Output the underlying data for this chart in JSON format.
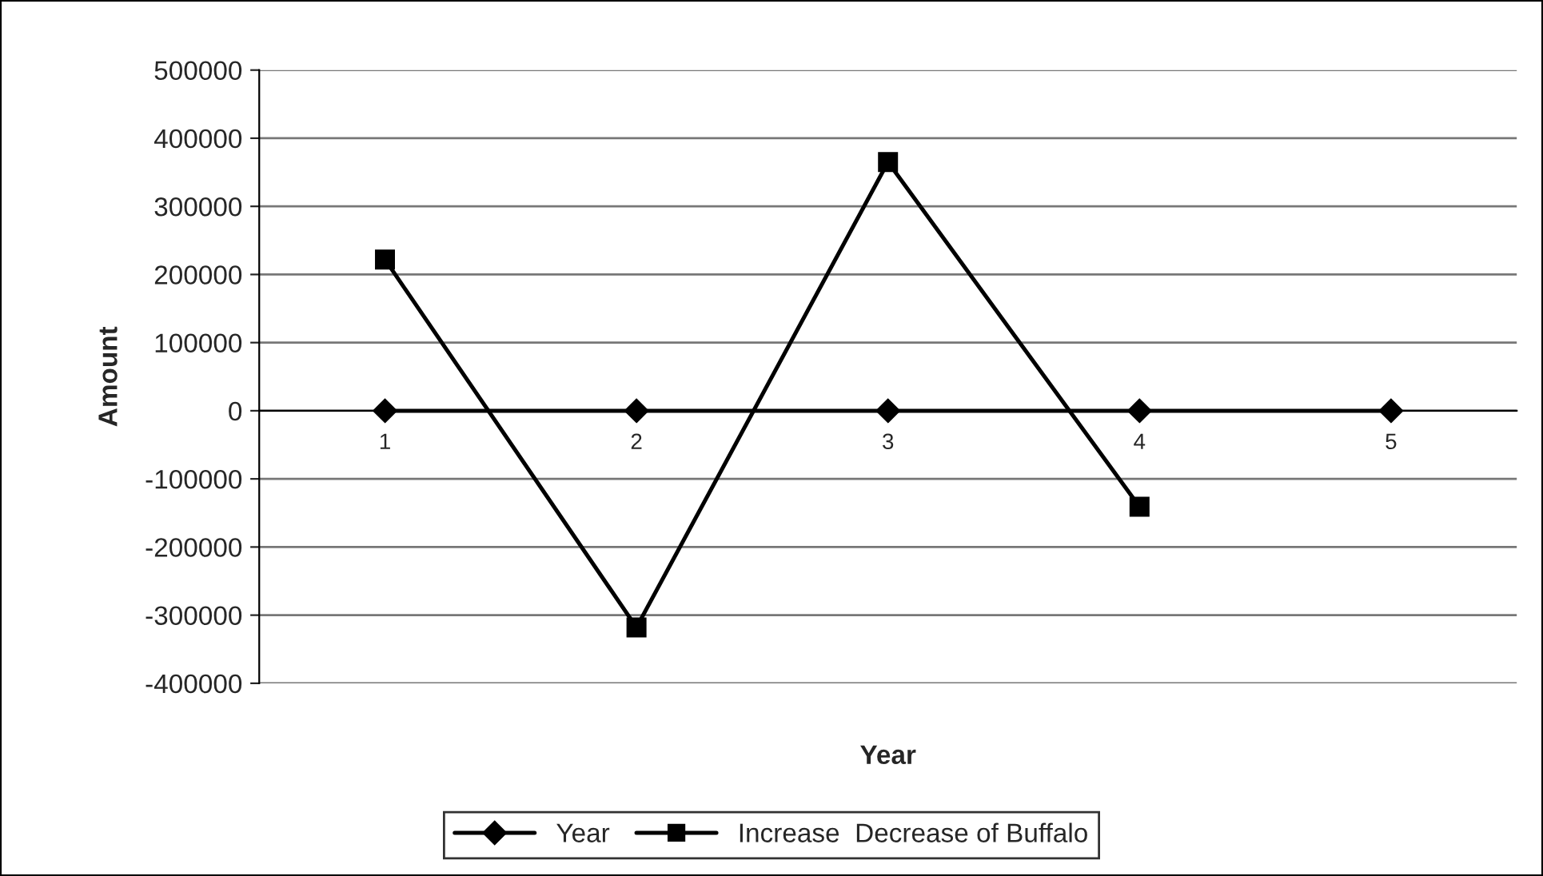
{
  "chart_data": {
    "type": "line",
    "xlabel": "Year",
    "ylabel": "Amount",
    "categories": [
      "1",
      "2",
      "3",
      "4",
      "5"
    ],
    "series": [
      {
        "name": "Year",
        "color": "#000000",
        "marker": "diamond",
        "values": [
          0,
          0,
          0,
          0,
          0
        ]
      },
      {
        "name": "Increase  Decrease of Buffalo",
        "color": "#000000",
        "marker": "square",
        "values": [
          222000,
          -318000,
          365000,
          -141000,
          null
        ]
      }
    ],
    "ylim": [
      -400000,
      500000
    ],
    "yticks": [
      -400000,
      -300000,
      -200000,
      -100000,
      0,
      100000,
      200000,
      300000,
      400000,
      500000
    ],
    "grid": "y",
    "legend": "bottom",
    "line_style": "solid"
  }
}
